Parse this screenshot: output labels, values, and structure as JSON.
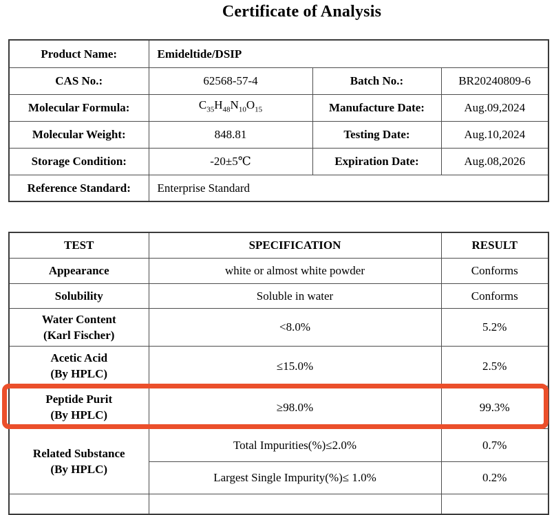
{
  "title": "Certificate of Analysis",
  "accent_color": "#eb4f2b",
  "info_table": {
    "rows": [
      {
        "label": "Product Name:",
        "value": "Emideltide/DSIP"
      },
      {
        "label": "CAS No.:",
        "value": "62568-57-4",
        "label2": "Batch No.:",
        "value2": "BR20240809-6"
      },
      {
        "label": "Molecular Formula:",
        "value": "C35H48N10O15",
        "label2": "Manufacture Date:",
        "value2": "Aug.09,2024"
      },
      {
        "label": "Molecular Weight:",
        "value": "848.81",
        "label2": "Testing Date:",
        "value2": "Aug.10,2024"
      },
      {
        "label": "Storage Condition:",
        "value": "-20±5℃",
        "label2": "Expiration Date:",
        "value2": "Aug.08,2026"
      },
      {
        "label": "Reference Standard:",
        "value": "Enterprise Standard"
      }
    ]
  },
  "results_table": {
    "headers": [
      "TEST",
      "SPECIFICATION",
      "RESULT"
    ],
    "rows": [
      {
        "test": "Appearance",
        "spec": "white or almost white powder",
        "result": "Conforms"
      },
      {
        "test": "Solubility",
        "spec": "Soluble in water",
        "result": "Conforms"
      },
      {
        "test_line1": "Water Content",
        "test_line2": "(Karl Fischer)",
        "spec": "<8.0%",
        "result": "5.2%"
      },
      {
        "test_line1": "Acetic Acid",
        "test_line2": "(By HPLC)",
        "spec": "≤15.0%",
        "result": "2.5%"
      },
      {
        "test_line1": "Peptide Purit",
        "test_line2": "(By HPLC)",
        "spec": "≥98.0%",
        "result": "99.3%",
        "highlighted": true
      },
      {
        "test_line1": "Related Substance",
        "test_line2": "(By HPLC)",
        "sub_rows": [
          {
            "spec": "Total Impurities(%)≤2.0%",
            "result": "0.7%"
          },
          {
            "spec": "Largest Single Impurity(%)≤ 1.0%",
            "result": "0.2%"
          }
        ]
      }
    ]
  }
}
